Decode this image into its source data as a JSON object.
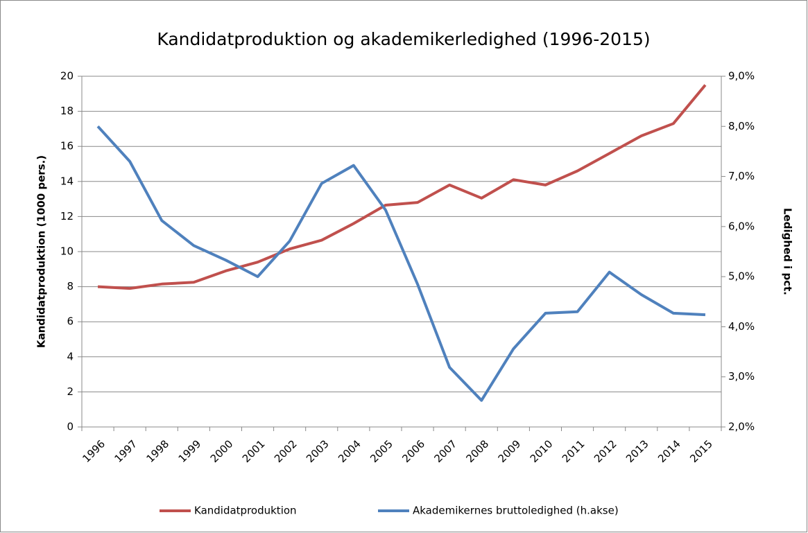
{
  "chart_data": {
    "type": "line",
    "title": "Kandidatproduktion og akademikerledighed (1996-2015)",
    "y_label": "Kandidatproduktion  (1000 pers.)",
    "y2_label": "Ledighed i pct.",
    "categories": [
      "1996",
      "1997",
      "1998",
      "1999",
      "2000",
      "2001",
      "2002",
      "2003",
      "2004",
      "2005",
      "2006",
      "2007",
      "2008",
      "2009",
      "2010",
      "2011",
      "2012",
      "2013",
      "2014",
      "2015"
    ],
    "series": [
      {
        "name": "Kandidatproduktion",
        "color": "#c0504d",
        "axis": "y",
        "values": [
          8.0,
          7.9,
          8.15,
          8.25,
          8.9,
          9.4,
          10.15,
          10.65,
          11.6,
          12.65,
          12.8,
          13.8,
          13.05,
          14.1,
          13.8,
          14.6,
          15.6,
          16.6,
          17.3,
          19.5
        ]
      },
      {
        "name": "Akademikernes bruttoledighed (h.akse)",
        "color": "#4f81bd",
        "axis": "y2",
        "values": [
          8.0,
          7.3,
          6.12,
          5.62,
          5.33,
          5.0,
          5.71,
          6.86,
          7.22,
          6.33,
          4.85,
          3.19,
          2.53,
          3.56,
          4.27,
          4.3,
          5.09,
          4.64,
          4.27,
          4.24
        ]
      }
    ],
    "ylim": [
      0,
      20
    ],
    "yticks": [
      0,
      2,
      4,
      6,
      8,
      10,
      12,
      14,
      16,
      18,
      20
    ],
    "y2lim": [
      2,
      9
    ],
    "y2ticks": [
      {
        "value": 2,
        "label": "2,0%"
      },
      {
        "value": 3,
        "label": "3,0%"
      },
      {
        "value": 4,
        "label": "4,0%"
      },
      {
        "value": 5,
        "label": "5,0%"
      },
      {
        "value": 6,
        "label": "6,0%"
      },
      {
        "value": 7,
        "label": "7,0%"
      },
      {
        "value": 8,
        "label": "8,0%"
      },
      {
        "value": 9,
        "label": "9,0%"
      }
    ],
    "grid": true,
    "legend": "bottom"
  }
}
